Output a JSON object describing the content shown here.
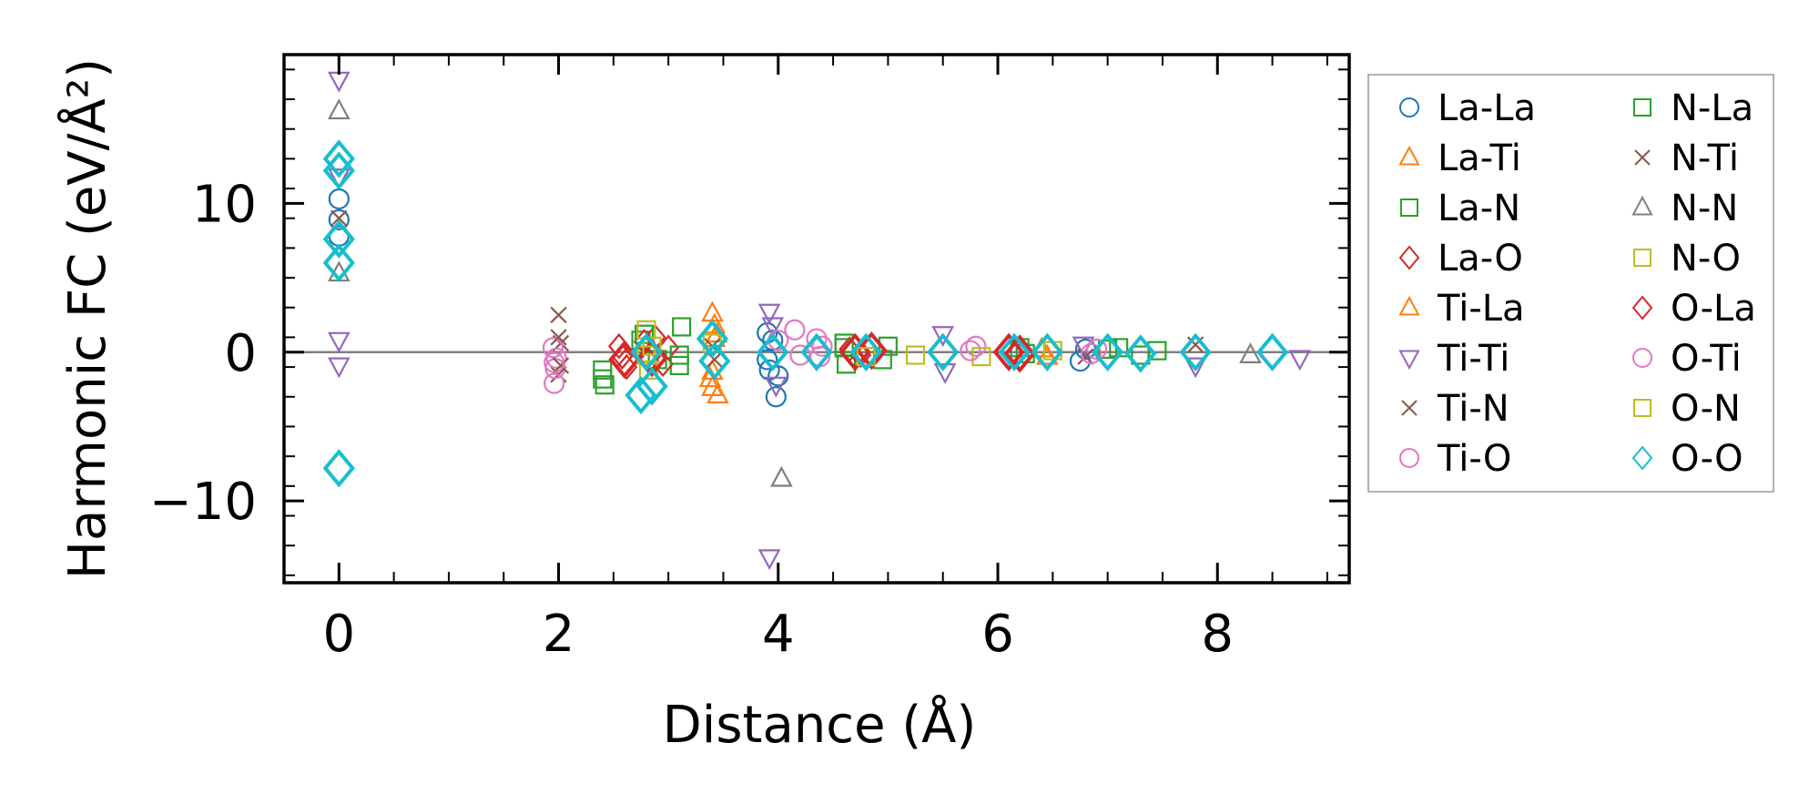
{
  "chart_data": {
    "type": "scatter",
    "title": "",
    "xlabel": "Distance (Å)",
    "ylabel": "Harmonic FC (eV/Å²)",
    "xlim": [
      -0.5,
      9.2
    ],
    "ylim": [
      -15.5,
      20
    ],
    "x_ticks": [
      0,
      2,
      4,
      6,
      8
    ],
    "x_tick_labels": [
      "0",
      "2",
      "4",
      "6",
      "8"
    ],
    "y_ticks": [
      -10,
      0,
      10
    ],
    "y_tick_labels": [
      "−10",
      "0",
      "10"
    ],
    "zero_line": true,
    "grid": false,
    "legend": {
      "position": "outside-right",
      "columns": 2
    },
    "series": [
      {
        "name": "La-La",
        "marker": "circle",
        "color": "#1f77b4",
        "size": "small",
        "points": [
          [
            0,
            10.3
          ],
          [
            0,
            8.9
          ],
          [
            0,
            7.8
          ],
          [
            3.9,
            1.3
          ],
          [
            3.9,
            -0.5
          ],
          [
            3.92,
            -1.2
          ],
          [
            3.95,
            0.8
          ],
          [
            3.98,
            -3.0
          ],
          [
            4.0,
            -1.6
          ],
          [
            6.75,
            -0.6
          ],
          [
            6.8,
            0.2
          ]
        ]
      },
      {
        "name": "La-Ti",
        "marker": "triangle-up",
        "color": "#ff7f0e",
        "size": "small",
        "points": [
          [
            3.4,
            2.6
          ],
          [
            3.42,
            1.8
          ],
          [
            3.44,
            1.2
          ],
          [
            3.38,
            -1.8
          ],
          [
            3.4,
            -2.4
          ],
          [
            3.45,
            -2.9
          ],
          [
            6.45,
            -0.3
          ]
        ]
      },
      {
        "name": "La-N",
        "marker": "square",
        "color": "#2ca02c",
        "size": "small",
        "points": [
          [
            2.4,
            -1.2
          ],
          [
            2.42,
            -2.2
          ],
          [
            2.75,
            0.8
          ],
          [
            2.9,
            -0.5
          ],
          [
            3.1,
            -0.9
          ],
          [
            3.12,
            1.7
          ],
          [
            4.6,
            0.6
          ],
          [
            4.62,
            -0.8
          ],
          [
            5.0,
            0.4
          ],
          [
            6.2,
            0.3
          ],
          [
            7.0,
            0.2
          ],
          [
            7.45,
            0.1
          ]
        ]
      },
      {
        "name": "La-O",
        "marker": "diamond",
        "color": "#d62728",
        "size": "small",
        "points": [
          [
            2.55,
            0.4
          ],
          [
            2.58,
            -0.3
          ],
          [
            2.62,
            -1.0
          ],
          [
            2.78,
            0.7
          ],
          [
            2.82,
            -0.6
          ],
          [
            2.88,
            1.0
          ],
          [
            2.95,
            -0.8
          ],
          [
            3.0,
            0.3
          ],
          [
            4.65,
            0.2
          ],
          [
            4.75,
            -0.2
          ]
        ]
      },
      {
        "name": "Ti-La",
        "marker": "triangle-up",
        "color": "#ff7f0e",
        "size": "small",
        "points": [
          [
            3.42,
            0.9
          ],
          [
            3.4,
            -1.3
          ],
          [
            6.4,
            0.2
          ]
        ]
      },
      {
        "name": "Ti-Ti",
        "marker": "triangle-down",
        "color": "#9467bd",
        "size": "small",
        "points": [
          [
            0,
            18.3
          ],
          [
            0,
            11.8
          ],
          [
            0,
            0.8
          ],
          [
            0,
            -0.9
          ],
          [
            3.92,
            2.7
          ],
          [
            3.95,
            1.8
          ],
          [
            3.98,
            -2.2
          ],
          [
            3.92,
            -13.8
          ],
          [
            5.5,
            1.2
          ],
          [
            5.52,
            -1.3
          ],
          [
            6.78,
            0.5
          ],
          [
            7.8,
            -0.9
          ],
          [
            8.75,
            -0.4
          ]
        ]
      },
      {
        "name": "Ti-N",
        "marker": "x",
        "color": "#8c564b",
        "size": "small",
        "points": [
          [
            0,
            9.0
          ],
          [
            2.0,
            2.5
          ],
          [
            2.02,
            0.6
          ],
          [
            2.0,
            -1.5
          ],
          [
            3.4,
            0.4
          ],
          [
            7.8,
            0.5
          ]
        ]
      },
      {
        "name": "Ti-O",
        "marker": "circle",
        "color": "#e377c2",
        "size": "small",
        "points": [
          [
            1.95,
            0.3
          ],
          [
            1.98,
            -0.4
          ],
          [
            1.97,
            -1.1
          ],
          [
            1.96,
            -2.1
          ],
          [
            4.0,
            0.8
          ],
          [
            4.15,
            1.5
          ],
          [
            4.35,
            0.9
          ],
          [
            4.38,
            -0.3
          ],
          [
            5.8,
            0.4
          ],
          [
            6.9,
            0.2
          ]
        ]
      },
      {
        "name": "N-La",
        "marker": "square",
        "color": "#2ca02c",
        "size": "small",
        "points": [
          [
            2.4,
            -1.8
          ],
          [
            2.78,
            1.2
          ],
          [
            3.1,
            -0.2
          ],
          [
            4.6,
            0.3
          ],
          [
            4.95,
            -0.5
          ],
          [
            6.25,
            -0.1
          ],
          [
            7.1,
            0.3
          ],
          [
            7.3,
            -0.2
          ]
        ]
      },
      {
        "name": "N-Ti",
        "marker": "x",
        "color": "#8c564b",
        "size": "small",
        "points": [
          [
            2.0,
            1.0
          ],
          [
            2.02,
            -0.9
          ],
          [
            3.42,
            -0.5
          ],
          [
            6.8,
            -0.3
          ]
        ]
      },
      {
        "name": "N-N",
        "marker": "triangle-up",
        "color": "#7f7f7f",
        "size": "small",
        "points": [
          [
            0,
            16.2
          ],
          [
            0,
            5.3
          ],
          [
            4.03,
            -8.5
          ],
          [
            8.3,
            -0.2
          ]
        ]
      },
      {
        "name": "N-O",
        "marker": "square",
        "color": "#bcbd22",
        "size": "small",
        "points": [
          [
            2.8,
            1.5
          ],
          [
            2.82,
            -1.2
          ],
          [
            3.4,
            0.6
          ],
          [
            5.25,
            -0.2
          ],
          [
            5.85,
            -0.3
          ]
        ]
      },
      {
        "name": "O-La",
        "marker": "diamond",
        "color": "#d62728",
        "size": "large",
        "points": [
          [
            2.6,
            -0.5
          ],
          [
            2.85,
            -0.4
          ],
          [
            4.7,
            0.0
          ],
          [
            4.85,
            0.1
          ],
          [
            6.1,
            0.0
          ],
          [
            6.2,
            -0.1
          ]
        ]
      },
      {
        "name": "O-Ti",
        "marker": "circle",
        "color": "#e377c2",
        "size": "small",
        "points": [
          [
            1.96,
            -0.7
          ],
          [
            4.2,
            -0.2
          ],
          [
            4.4,
            0.4
          ],
          [
            5.75,
            0.1
          ],
          [
            6.85,
            -0.1
          ]
        ]
      },
      {
        "name": "O-N",
        "marker": "square",
        "color": "#bcbd22",
        "size": "small",
        "points": [
          [
            2.8,
            -0.2
          ],
          [
            2.85,
            0.4
          ],
          [
            4.8,
            -0.3
          ],
          [
            6.5,
            0.1
          ]
        ]
      },
      {
        "name": "O-O",
        "marker": "diamond",
        "color": "#17becf",
        "size": "large",
        "points": [
          [
            0,
            13.0
          ],
          [
            0,
            12.2
          ],
          [
            0,
            7.6
          ],
          [
            0,
            6.0
          ],
          [
            0,
            -7.8
          ],
          [
            2.75,
            -2.9
          ],
          [
            2.85,
            -2.3
          ],
          [
            2.8,
            0.0
          ],
          [
            3.4,
            0.9
          ],
          [
            3.42,
            -0.6
          ],
          [
            3.95,
            0.0
          ],
          [
            4.35,
            0.0
          ],
          [
            4.8,
            0.0
          ],
          [
            5.5,
            0.0
          ],
          [
            6.15,
            0.0
          ],
          [
            6.45,
            0.0
          ],
          [
            7.0,
            0.0
          ],
          [
            7.3,
            -0.1
          ],
          [
            7.8,
            0.0
          ],
          [
            8.5,
            0.0
          ]
        ]
      }
    ]
  }
}
